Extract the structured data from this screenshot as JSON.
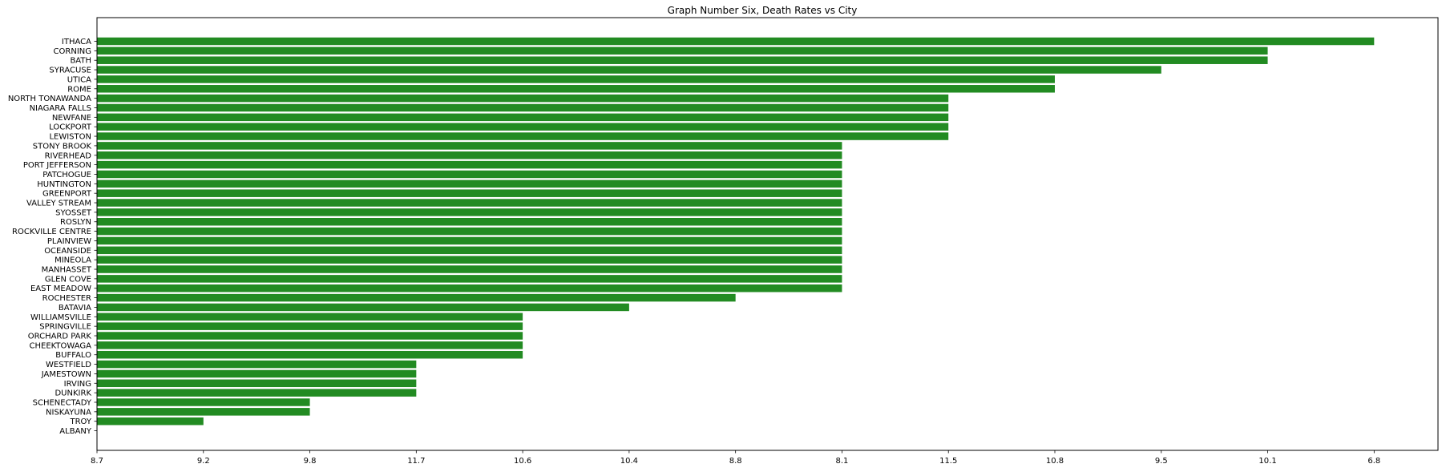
{
  "chart_data": {
    "type": "bar",
    "orientation": "horizontal",
    "title": "Graph Number Six, Death Rates vs City",
    "xlabel": "",
    "ylabel": "",
    "grid": false,
    "bar_color": "#228b22",
    "x_ticks": [
      {
        "pos": 0,
        "label": "8.7"
      },
      {
        "pos": 1,
        "label": "9.2"
      },
      {
        "pos": 2,
        "label": "9.8"
      },
      {
        "pos": 3,
        "label": "11.7"
      },
      {
        "pos": 4,
        "label": "10.6"
      },
      {
        "pos": 5,
        "label": "10.4"
      },
      {
        "pos": 6,
        "label": "8.8"
      },
      {
        "pos": 7,
        "label": "8.1"
      },
      {
        "pos": 8,
        "label": "11.5"
      },
      {
        "pos": 9,
        "label": "10.8"
      },
      {
        "pos": 10,
        "label": "9.5"
      },
      {
        "pos": 11,
        "label": "10.1"
      },
      {
        "pos": 12,
        "label": "6.8"
      }
    ],
    "xlim": [
      0,
      12.6
    ],
    "categories": [
      "ITHACA",
      "CORNING",
      "BATH",
      "SYRACUSE",
      "UTICA",
      "ROME",
      "NORTH TONAWANDA",
      "NIAGARA FALLS",
      "NEWFANE",
      "LOCKPORT",
      "LEWISTON",
      "STONY BROOK",
      "RIVERHEAD",
      "PORT JEFFERSON",
      "PATCHOGUE",
      "HUNTINGTON",
      "GREENPORT",
      "VALLEY STREAM",
      "SYOSSET",
      "ROSLYN",
      "ROCKVILLE CENTRE",
      "PLAINVIEW",
      "OCEANSIDE",
      "MINEOLA",
      "MANHASSET",
      "GLEN COVE",
      "EAST MEADOW",
      "ROCHESTER",
      "BATAVIA",
      "WILLIAMSVILLE",
      "SPRINGVILLE",
      "ORCHARD PARK",
      "CHEEKTOWAGA",
      "BUFFALO",
      "WESTFIELD",
      "JAMESTOWN",
      "IRVING",
      "DUNKIRK",
      "SCHENECTADY",
      "NISKAYUNA",
      "TROY",
      "ALBANY"
    ],
    "values": [
      12,
      11,
      11,
      10,
      9,
      9,
      8,
      8,
      8,
      8,
      8,
      7,
      7,
      7,
      7,
      7,
      7,
      7,
      7,
      7,
      7,
      7,
      7,
      7,
      7,
      7,
      7,
      6,
      5,
      4,
      4,
      4,
      4,
      4,
      3,
      3,
      3,
      3,
      2,
      2,
      1,
      0
    ]
  }
}
